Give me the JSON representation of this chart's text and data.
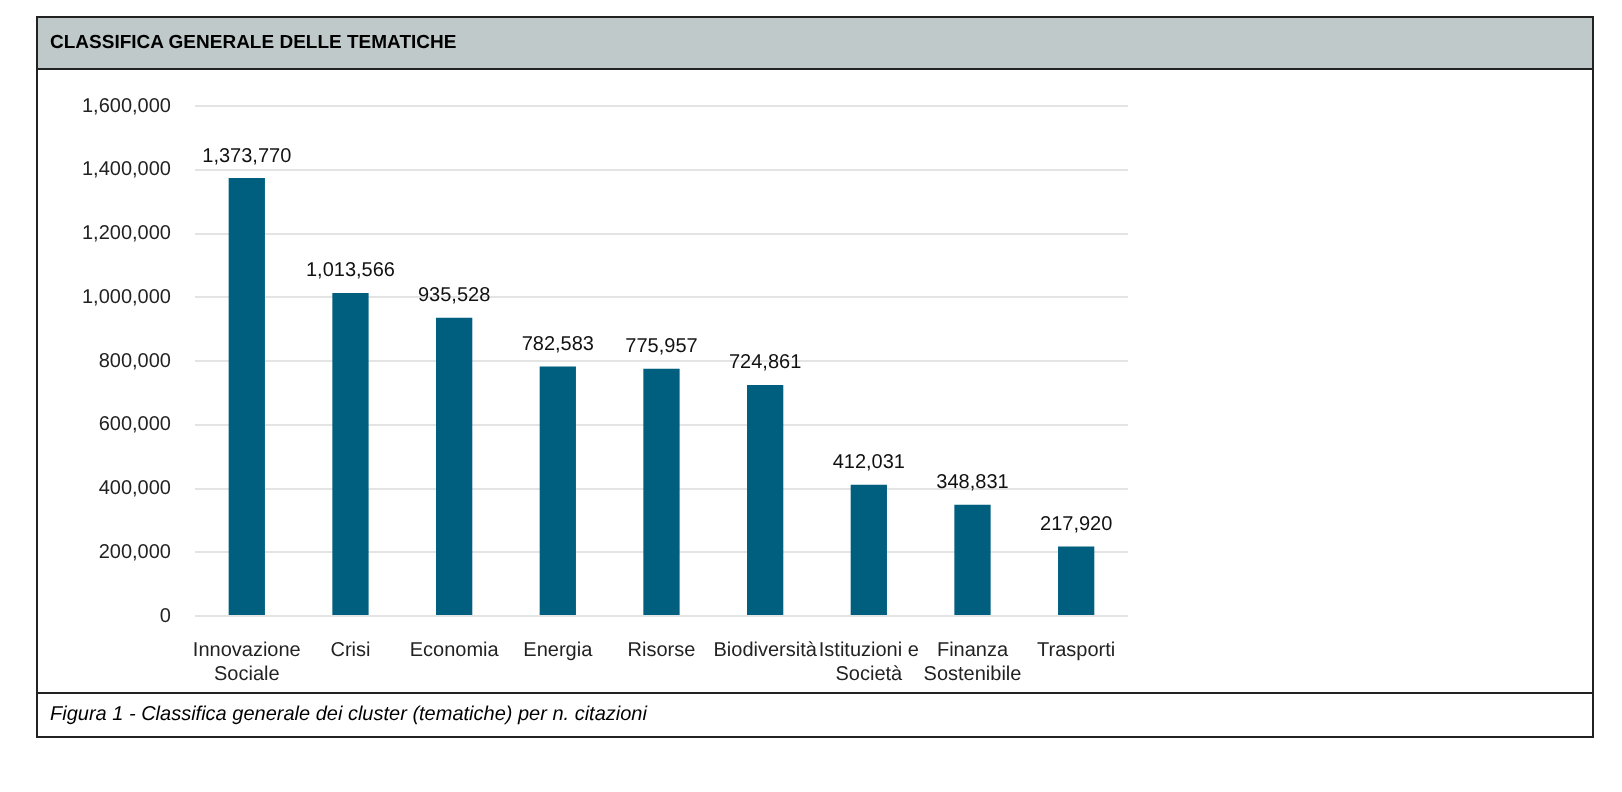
{
  "chart_data": {
    "type": "bar",
    "title": "CLASSIFICA GENERALE DELLE TEMATICHE",
    "categories": [
      "Innovazione Sociale",
      "Crisi",
      "Economia",
      "Energia",
      "Risorse",
      "Biodiversità",
      "Istituzioni e Società",
      "Finanza Sostenibile",
      "Trasporti"
    ],
    "values": [
      1373770,
      1013566,
      935528,
      782583,
      775957,
      724861,
      412031,
      348831,
      217920
    ],
    "value_labels": [
      "1,373,770",
      "1,013,566",
      "935,528",
      "782,583",
      "775,957",
      "724,861",
      "412,031",
      "348,831",
      "217,920"
    ],
    "color": "#005f7f",
    "ylim": [
      0,
      1600000
    ],
    "yticks": [
      0,
      {
        "value": 200000,
        "label": "200,000"
      },
      {
        "value": 400000,
        "label": "400,000"
      },
      {
        "value": 600000,
        "label": "600,000"
      },
      {
        "value": 800000,
        "label": "800,000"
      },
      {
        "value": 1000000,
        "label": "1,000,000"
      },
      {
        "value": 1200000,
        "label": "1,200,000"
      },
      {
        "value": 1400000,
        "label": "1,400,000"
      },
      {
        "value": 1600000,
        "label": "1,600,000"
      }
    ],
    "grid": "y",
    "annotations": [
      "Figura 1 - Classifica generale dei cluster (tematiche) per n. citazioni"
    ]
  }
}
